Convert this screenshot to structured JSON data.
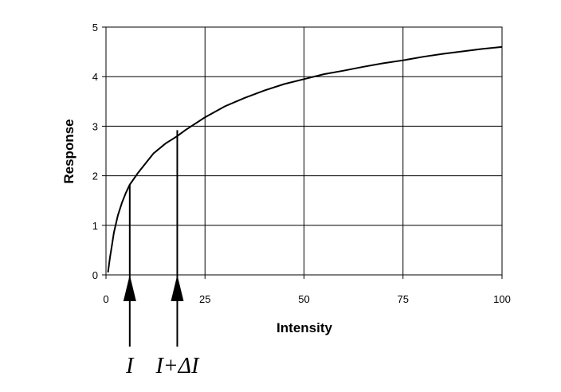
{
  "chart_data": {
    "type": "line",
    "title": "",
    "xlabel": "Intensity",
    "ylabel": "Response",
    "xlim": [
      0,
      100
    ],
    "ylim": [
      0,
      5
    ],
    "xticks": [
      0,
      25,
      50,
      75,
      100
    ],
    "yticks": [
      0,
      1,
      2,
      3,
      4,
      5
    ],
    "grid": true,
    "legend": "none",
    "series": [
      {
        "x": [
          0.5,
          1,
          1.5,
          2,
          3,
          4,
          5,
          6,
          8,
          10,
          12,
          15,
          18,
          20,
          25,
          30,
          35,
          40,
          45,
          50,
          55,
          60,
          65,
          70,
          75,
          80,
          85,
          90,
          95,
          100
        ],
        "y": [
          0.05,
          0.35,
          0.6,
          0.85,
          1.2,
          1.45,
          1.65,
          1.82,
          2.05,
          2.25,
          2.45,
          2.65,
          2.8,
          2.92,
          3.18,
          3.4,
          3.57,
          3.72,
          3.85,
          3.95,
          4.05,
          4.12,
          4.2,
          4.27,
          4.33,
          4.4,
          4.46,
          4.51,
          4.56,
          4.6
        ],
        "color": "#000000"
      }
    ],
    "annotations": [
      {
        "label": "I",
        "x": 6,
        "y": 1.82
      },
      {
        "label": "I+ΔI",
        "x": 18,
        "y": 2.92
      }
    ]
  }
}
